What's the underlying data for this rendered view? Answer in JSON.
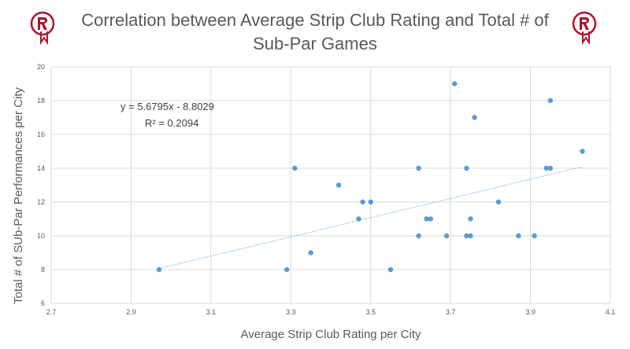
{
  "chart_data": {
    "type": "scatter",
    "title_line1": "Correlation between Average Strip Club Rating and Total # of",
    "title_line2": "Sub-Par Games",
    "xlabel": "Average Strip Club Rating per City",
    "ylabel": "Total # of SUb-Par Performances per City",
    "xlim": [
      2.7,
      4.1
    ],
    "ylim": [
      6,
      20
    ],
    "xticks": [
      "2.7",
      "2.9",
      "3.1",
      "3.3",
      "3.5",
      "3.7",
      "3.9",
      "4.1"
    ],
    "yticks": [
      "6",
      "8",
      "10",
      "12",
      "14",
      "16",
      "18",
      "20"
    ],
    "grid": true,
    "points": [
      {
        "x": 2.97,
        "y": 8
      },
      {
        "x": 3.29,
        "y": 8
      },
      {
        "x": 3.31,
        "y": 14
      },
      {
        "x": 3.35,
        "y": 9
      },
      {
        "x": 3.42,
        "y": 13
      },
      {
        "x": 3.47,
        "y": 11
      },
      {
        "x": 3.48,
        "y": 12
      },
      {
        "x": 3.5,
        "y": 12
      },
      {
        "x": 3.55,
        "y": 8
      },
      {
        "x": 3.62,
        "y": 14
      },
      {
        "x": 3.62,
        "y": 10
      },
      {
        "x": 3.64,
        "y": 11
      },
      {
        "x": 3.65,
        "y": 11
      },
      {
        "x": 3.69,
        "y": 10
      },
      {
        "x": 3.71,
        "y": 19
      },
      {
        "x": 3.74,
        "y": 14
      },
      {
        "x": 3.74,
        "y": 10
      },
      {
        "x": 3.75,
        "y": 11
      },
      {
        "x": 3.75,
        "y": 10
      },
      {
        "x": 3.76,
        "y": 17
      },
      {
        "x": 3.82,
        "y": 12
      },
      {
        "x": 3.87,
        "y": 10
      },
      {
        "x": 3.91,
        "y": 10
      },
      {
        "x": 3.94,
        "y": 14
      },
      {
        "x": 3.95,
        "y": 14
      },
      {
        "x": 3.95,
        "y": 18
      },
      {
        "x": 4.03,
        "y": 15
      }
    ],
    "trendline": {
      "type": "linear",
      "slope": 5.6795,
      "intercept": -8.8029,
      "x_range": [
        2.97,
        4.03
      ],
      "equation": "y = 5.6795x - 8.8029",
      "r_squared": "R² = 0.2094"
    },
    "colors": {
      "point": "#5b9bd5",
      "trendline": "#8fb4da",
      "grid": "#d9d9d9",
      "text": "#595959",
      "logo": "#b0102e"
    },
    "logo_icon": "houston-rockets-logo"
  }
}
